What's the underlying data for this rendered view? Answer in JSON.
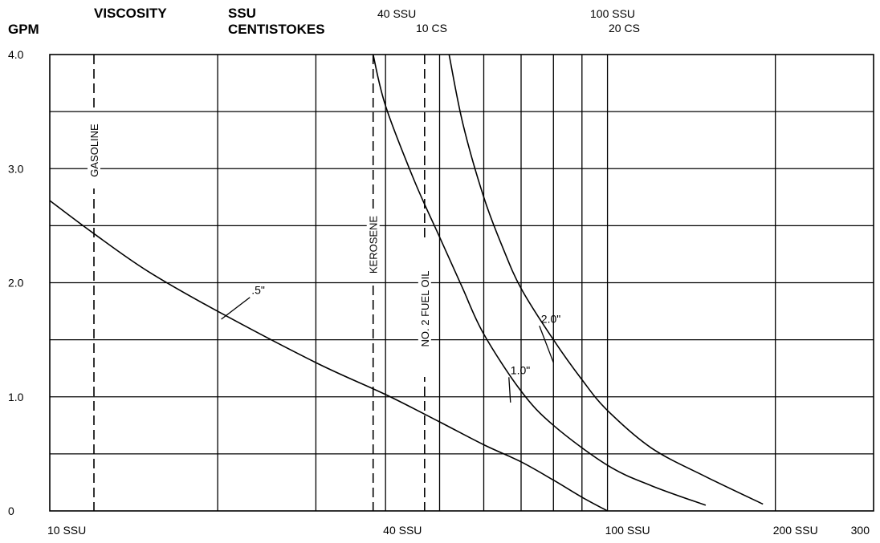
{
  "chart_data": {
    "type": "line",
    "title": "",
    "header": {
      "y_unit": "GPM",
      "viscosity": "VISCOSITY",
      "ssu": "SSU",
      "centistokes": "CENTISTOKES",
      "mark1_ssu": "40 SSU",
      "mark1_cs": "10 CS",
      "mark2_ssu": "100 SSU",
      "mark2_cs": "20 CS"
    },
    "ylabel": "GPM",
    "ylim": [
      0,
      4.0
    ],
    "y_ticks": [
      {
        "value": 4.0,
        "label": "4.0"
      },
      {
        "value": 3.0,
        "label": "3.0"
      },
      {
        "value": 2.0,
        "label": "2.0"
      },
      {
        "value": 1.0,
        "label": "1.0"
      },
      {
        "value": 0,
        "label": "0"
      }
    ],
    "x_ticks": [
      {
        "value": 10,
        "label": "10 SSU"
      },
      {
        "value": 40,
        "label": "40 SSU"
      },
      {
        "value": 100,
        "label": "100 SSU"
      },
      {
        "value": 200,
        "label": "200 SSU"
      },
      {
        "value": 300,
        "label": "300"
      }
    ],
    "x_scale": "log",
    "xlim": [
      10,
      300
    ],
    "grid": true,
    "reference_lines": [
      {
        "label": "GASOLINE",
        "x": 12
      },
      {
        "label": "KEROSENE",
        "x": 38
      },
      {
        "label": "NO. 2 FUEL OIL",
        "x": 47
      }
    ],
    "series": [
      {
        "name": ".5\"",
        "x": [
          10,
          12,
          15,
          20,
          30,
          40,
          50,
          60,
          70,
          80,
          90,
          100
        ],
        "y": [
          2.72,
          2.43,
          2.1,
          1.75,
          1.3,
          1.02,
          0.78,
          0.58,
          0.43,
          0.27,
          0.12,
          0.0
        ]
      },
      {
        "name": "1.0\"",
        "x": [
          38,
          40,
          45,
          50,
          55,
          60,
          70,
          80,
          100,
          120,
          150
        ],
        "y": [
          4.0,
          3.55,
          2.9,
          2.4,
          1.95,
          1.55,
          1.05,
          0.75,
          0.4,
          0.22,
          0.05
        ]
      },
      {
        "name": "2.0\"",
        "x": [
          52,
          55,
          60,
          65,
          70,
          80,
          90,
          100,
          120,
          150,
          190
        ],
        "y": [
          4.0,
          3.4,
          2.75,
          2.3,
          1.95,
          1.5,
          1.15,
          0.88,
          0.55,
          0.3,
          0.06
        ]
      }
    ],
    "label_colors": {
      "line": "#000000",
      "background": "#ffffff"
    }
  }
}
